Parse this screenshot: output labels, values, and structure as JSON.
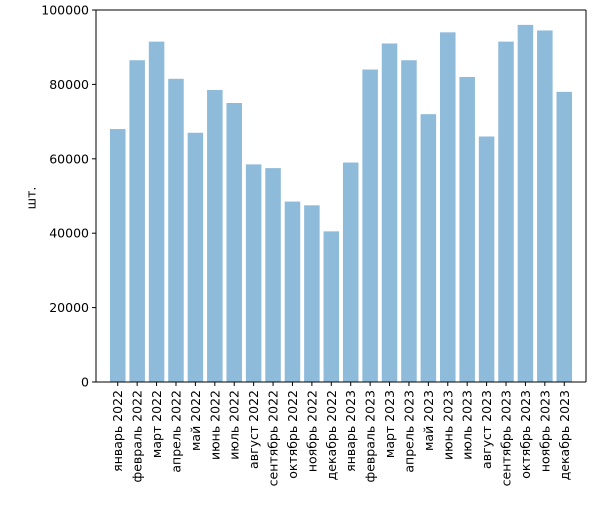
{
  "chart_data": {
    "type": "bar",
    "title": "",
    "xlabel": "",
    "ylabel": "шт.",
    "ylim": [
      0,
      100000
    ],
    "yticks": [
      0,
      20000,
      40000,
      60000,
      80000,
      100000
    ],
    "ytick_labels": [
      "0",
      "20000",
      "40000",
      "60000",
      "80000",
      "100000"
    ],
    "grid": false,
    "bar_color": "#8fbbdb",
    "categories": [
      "январь 2022",
      "февраль 2022",
      "март 2022",
      "апрель 2022",
      "май 2022",
      "июнь 2022",
      "июль 2022",
      "август 2022",
      "сентябрь 2022",
      "октябрь 2022",
      "ноябрь 2022",
      "декабрь 2022",
      "январь 2023",
      "февраль 2023",
      "март 2023",
      "апрель 2023",
      "май 2023",
      "июнь 2023",
      "июль 2023",
      "август 2023",
      "сентябрь 2023",
      "октябрь 2023",
      "ноябрь 2023",
      "декабрь 2023"
    ],
    "values": [
      68000,
      86500,
      91500,
      81500,
      67000,
      78500,
      75000,
      58500,
      57500,
      48500,
      47500,
      40500,
      59000,
      84000,
      91000,
      86500,
      72000,
      94000,
      82000,
      66000,
      91500,
      96000,
      94500,
      78000
    ]
  }
}
